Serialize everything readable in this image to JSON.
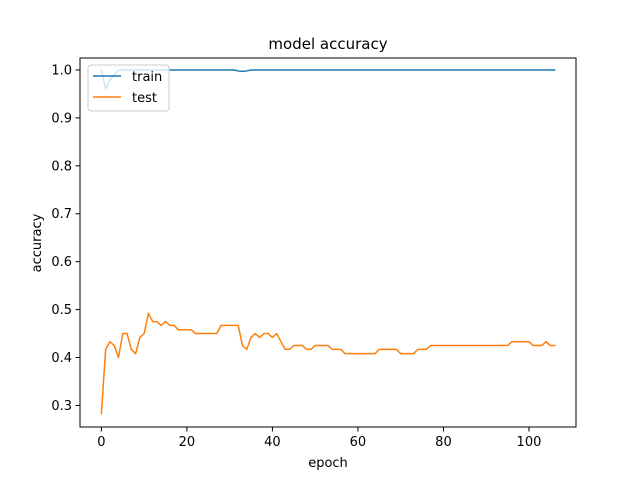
{
  "chart_data": {
    "type": "line",
    "title": "model accuracy",
    "xlabel": "epoch",
    "ylabel": "accuracy",
    "xlim": [
      -5,
      111
    ],
    "ylim": [
      0.255,
      1.025
    ],
    "xticks": [
      0,
      20,
      40,
      60,
      80,
      100
    ],
    "yticks": [
      0.3,
      0.4,
      0.5,
      0.6,
      0.7,
      0.8,
      0.9,
      1.0
    ],
    "ytick_labels": [
      "0.3",
      "0.4",
      "0.5",
      "0.6",
      "0.7",
      "0.8",
      "0.9",
      "1.0"
    ],
    "grid": false,
    "legend_position": "upper-left",
    "series": [
      {
        "name": "train",
        "color": "#1f77b4",
        "x": [
          0,
          1,
          2,
          3,
          4,
          5,
          6,
          30,
          31,
          32,
          33,
          34,
          35,
          106
        ],
        "y": [
          1.0,
          0.96,
          0.98,
          0.99,
          1.0,
          1.0,
          1.0,
          1.0,
          1.0,
          0.998,
          0.997,
          0.998,
          1.0,
          1.0
        ]
      },
      {
        "name": "test",
        "color": "#ff7f0e",
        "x": [
          0,
          1,
          2,
          3,
          4,
          5,
          6,
          7,
          8,
          9,
          10,
          11,
          12,
          13,
          14,
          15,
          16,
          17,
          18,
          19,
          20,
          21,
          22,
          23,
          24,
          25,
          26,
          27,
          28,
          29,
          30,
          31,
          32,
          33,
          34,
          35,
          36,
          37,
          38,
          39,
          40,
          41,
          42,
          43,
          44,
          45,
          46,
          47,
          48,
          49,
          50,
          51,
          52,
          53,
          54,
          55,
          56,
          57,
          58,
          59,
          60,
          61,
          62,
          63,
          64,
          65,
          66,
          67,
          68,
          69,
          70,
          71,
          72,
          73,
          74,
          75,
          76,
          77,
          78,
          79,
          80,
          81,
          82,
          83,
          84,
          85,
          86,
          87,
          88,
          89,
          90,
          91,
          92,
          93,
          94,
          95,
          96,
          97,
          98,
          99,
          100,
          101,
          102,
          103,
          104,
          105,
          106
        ],
        "y": [
          0.283,
          0.417,
          0.433,
          0.425,
          0.4,
          0.45,
          0.45,
          0.417,
          0.408,
          0.442,
          0.45,
          0.492,
          0.475,
          0.475,
          0.467,
          0.475,
          0.467,
          0.467,
          0.458,
          0.458,
          0.458,
          0.458,
          0.45,
          0.45,
          0.45,
          0.45,
          0.45,
          0.45,
          0.467,
          0.467,
          0.467,
          0.467,
          0.467,
          0.425,
          0.417,
          0.442,
          0.45,
          0.442,
          0.45,
          0.45,
          0.442,
          0.45,
          0.433,
          0.417,
          0.417,
          0.425,
          0.425,
          0.425,
          0.417,
          0.417,
          0.425,
          0.425,
          0.425,
          0.425,
          0.417,
          0.417,
          0.417,
          0.408,
          0.408,
          0.408,
          0.408,
          0.408,
          0.408,
          0.408,
          0.408,
          0.417,
          0.417,
          0.417,
          0.417,
          0.417,
          0.408,
          0.408,
          0.408,
          0.408,
          0.417,
          0.417,
          0.417,
          0.425,
          0.425,
          0.425,
          0.425,
          0.425,
          0.425,
          0.425,
          0.425,
          0.425,
          0.425,
          0.425,
          0.425,
          0.425,
          0.425,
          0.425,
          0.425,
          0.425,
          0.425,
          0.425,
          0.433,
          0.433,
          0.433,
          0.433,
          0.433,
          0.425,
          0.425,
          0.425,
          0.433,
          0.425,
          0.425
        ]
      }
    ]
  }
}
